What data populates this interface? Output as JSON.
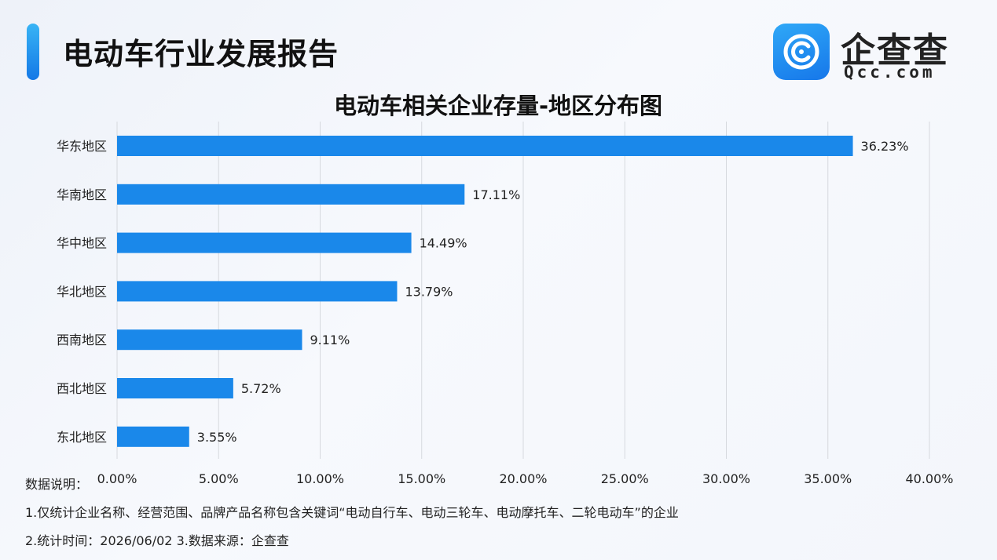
{
  "header": {
    "title": "电动车行业发展报告"
  },
  "logo": {
    "name_cn": "企查查",
    "name_en": "Qcc.com",
    "brand_color": "#1a7fe8"
  },
  "chart_data": {
    "type": "bar",
    "orientation": "horizontal",
    "title": "电动车相关企业存量-地区分布图",
    "xlabel": "",
    "ylabel": "",
    "categories": [
      "华东地区",
      "华南地区",
      "华中地区",
      "华北地区",
      "西南地区",
      "西北地区",
      "东北地区"
    ],
    "values": [
      36.23,
      17.11,
      14.49,
      13.79,
      9.11,
      5.72,
      3.55
    ],
    "value_labels": [
      "36.23%",
      "17.11%",
      "14.49%",
      "13.79%",
      "9.11%",
      "5.72%",
      "3.55%"
    ],
    "xlim": [
      0,
      40
    ],
    "xticks": [
      0,
      5,
      10,
      15,
      20,
      25,
      30,
      35,
      40
    ],
    "xtick_labels": [
      "0.00%",
      "5.00%",
      "10.00%",
      "15.00%",
      "20.00%",
      "25.00%",
      "30.00%",
      "35.00%",
      "40.00%"
    ],
    "grid": "vertical",
    "bar_color": "#1a88ea"
  },
  "notes": {
    "heading": "数据说明：",
    "line1": "1.仅统计企业名称、经营范围、品牌产品名称包含关键词“电动自行车、电动三轮车、电动摩托车、二轮电动车”的企业",
    "line2": "2.统计时间：2026/06/02    3.数据来源：企查查"
  }
}
